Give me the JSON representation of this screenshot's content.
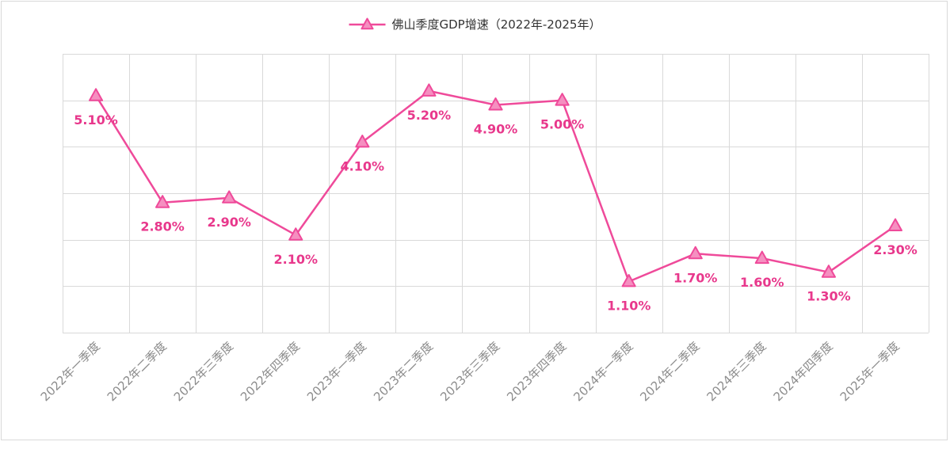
{
  "colors": {
    "series": "#ef4a9a",
    "marker_fill": "#f58fc0",
    "label": "#e8388c",
    "grid": "#d9d9d9",
    "tick_label": "#8c8c8c",
    "legend_text": "#333333"
  },
  "chart_data": {
    "type": "line",
    "title": "",
    "xlabel": "",
    "ylabel": "",
    "ylim": [
      0,
      6
    ],
    "y_tick_step": 1,
    "y_tick_labels_visible": false,
    "grid": true,
    "legend_position": "top-center",
    "marker": "triangle",
    "categories": [
      "2022年一季度",
      "2022年二季度",
      "2022年三季度",
      "2022年四季度",
      "2023年一季度",
      "2023年二季度",
      "2023年三季度",
      "2023年四季度",
      "2024年一季度",
      "2024年二季度",
      "2024年三季度",
      "2024年四季度",
      "2025年一季度"
    ],
    "series": [
      {
        "name": "佛山季度GDP增速（2022年-2025年）",
        "values": [
          5.1,
          2.8,
          2.9,
          2.1,
          4.1,
          5.2,
          4.9,
          5.0,
          1.1,
          1.7,
          1.6,
          1.3,
          2.3
        ],
        "data_labels": [
          "5.10%",
          "2.80%",
          "2.90%",
          "2.10%",
          "4.10%",
          "5.20%",
          "4.90%",
          "5.00%",
          "1.10%",
          "1.70%",
          "1.60%",
          "1.30%",
          "2.30%"
        ]
      }
    ]
  }
}
